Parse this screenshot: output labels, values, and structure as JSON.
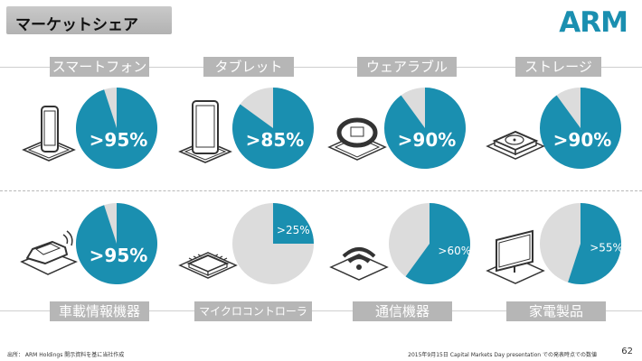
{
  "title": "マーケットシェア",
  "logo_text": "ARM",
  "colors": {
    "accent": "#1a8fb0",
    "pie_rest": "#dcdcdc",
    "label_bg": "#b6b6b6"
  },
  "footer": {
    "source": "出所： ARM Holdings 開示資料を基に当社作成",
    "note": "2015年9月15日 Capital Markets Day presentation での発表時点での数値",
    "page": "62"
  },
  "chart_data": [
    {
      "type": "pie",
      "category": "スマートフォン",
      "share": 95,
      "label": ">95%",
      "icon": "smartphone-icon"
    },
    {
      "type": "pie",
      "category": "タブレット",
      "share": 85,
      "label": ">85%",
      "icon": "tablet-icon"
    },
    {
      "type": "pie",
      "category": "ウェアラブル",
      "share": 90,
      "label": ">90%",
      "icon": "smartwatch-icon"
    },
    {
      "type": "pie",
      "category": "ストレージ",
      "share": 90,
      "label": ">90%",
      "icon": "hard-disk-icon"
    },
    {
      "type": "pie",
      "category": "車載情報機器",
      "share": 95,
      "label": ">95%",
      "icon": "car-icon"
    },
    {
      "type": "pie",
      "category": "マイクロコントローラ",
      "share": 25,
      "label": ">25%",
      "icon": "microchip-icon"
    },
    {
      "type": "pie",
      "category": "通信機器",
      "share": 60,
      "label": ">60%",
      "icon": "wifi-icon"
    },
    {
      "type": "pie",
      "category": "家電製品",
      "share": 55,
      "label": ">55%",
      "icon": "tv-monitor-icon"
    }
  ]
}
